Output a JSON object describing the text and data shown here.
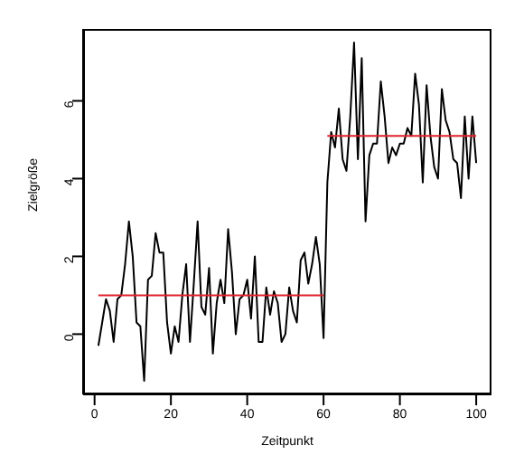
{
  "chart_data": {
    "type": "line",
    "xlabel": "Zeitpunkt",
    "ylabel": "Zielgröße",
    "x": [
      1,
      2,
      3,
      4,
      5,
      6,
      7,
      8,
      9,
      10,
      11,
      12,
      13,
      14,
      15,
      16,
      17,
      18,
      19,
      20,
      21,
      22,
      23,
      24,
      25,
      26,
      27,
      28,
      29,
      30,
      31,
      32,
      33,
      34,
      35,
      36,
      37,
      38,
      39,
      40,
      41,
      42,
      43,
      44,
      45,
      46,
      47,
      48,
      49,
      50,
      51,
      52,
      53,
      54,
      55,
      56,
      57,
      58,
      59,
      60,
      61,
      62,
      63,
      64,
      65,
      66,
      67,
      68,
      69,
      70,
      71,
      72,
      73,
      74,
      75,
      76,
      77,
      78,
      79,
      80,
      81,
      82,
      83,
      84,
      85,
      86,
      87,
      88,
      89,
      90,
      91,
      92,
      93,
      94,
      95,
      96,
      97,
      98,
      99,
      100
    ],
    "series": [
      {
        "color": "#000000",
        "values": [
          -0.3,
          0.3,
          0.9,
          0.6,
          -0.2,
          0.9,
          1.0,
          1.8,
          2.9,
          2.0,
          0.3,
          0.2,
          -1.2,
          1.4,
          1.5,
          2.6,
          2.1,
          2.1,
          0.3,
          -0.5,
          0.2,
          -0.2,
          1.0,
          1.8,
          -0.2,
          1.3,
          2.9,
          0.7,
          0.5,
          1.7,
          -0.5,
          0.8,
          1.4,
          0.8,
          2.7,
          1.6,
          0.0,
          0.9,
          1.0,
          1.4,
          0.4,
          2.0,
          -0.2,
          -0.2,
          1.2,
          0.5,
          1.1,
          0.8,
          -0.2,
          0.0,
          1.2,
          0.6,
          0.3,
          1.9,
          2.1,
          1.3,
          1.8,
          2.5,
          1.8,
          -0.1,
          3.9,
          5.2,
          4.8,
          5.8,
          4.5,
          4.2,
          5.6,
          7.5,
          4.5,
          7.1,
          2.9,
          4.6,
          4.9,
          4.9,
          6.5,
          5.6,
          4.4,
          4.8,
          4.6,
          4.9,
          4.9,
          5.3,
          5.1,
          6.7,
          5.9,
          3.9,
          6.4,
          5.1,
          4.3,
          4.0,
          6.3,
          5.5,
          5.2,
          4.5,
          4.4,
          3.5,
          5.6,
          4.0,
          5.6,
          4.4
        ]
      },
      {
        "color": "#e0202a",
        "x": [
          1,
          60
        ],
        "values": [
          1.0,
          1.0
        ]
      },
      {
        "color": "#e0202a",
        "x": [
          61,
          100
        ],
        "values": [
          5.1,
          5.1
        ]
      }
    ],
    "xlim": [
      -3,
      104
    ],
    "xticks": [
      0,
      20,
      40,
      60,
      80,
      100
    ],
    "ylim": [
      -1.55,
      7.85
    ],
    "yticks": [
      0,
      2,
      4,
      6
    ],
    "grid": false,
    "marker": "none",
    "line_style": "solid"
  }
}
